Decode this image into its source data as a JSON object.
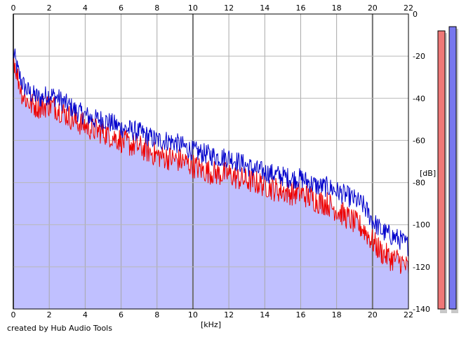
{
  "chart_data": {
    "type": "area",
    "title": "",
    "xlabel": "[kHz]",
    "ylabel": "[dB]",
    "xlim": [
      0,
      22
    ],
    "ylim": [
      -140,
      0
    ],
    "x_ticks": [
      0,
      2,
      4,
      6,
      8,
      10,
      12,
      14,
      16,
      18,
      20,
      22
    ],
    "y_ticks": [
      0,
      -20,
      -40,
      -60,
      -80,
      -100,
      -120,
      -140
    ],
    "y_tick_labels": [
      "0",
      "-20",
      "-40",
      "-60",
      "-80",
      "-100",
      "-120",
      "-140"
    ],
    "grid": true,
    "legend": "none",
    "series": [
      {
        "color": "#0000cc",
        "x": [
          0,
          0.25,
          0.5,
          0.75,
          1,
          1.5,
          2,
          2.5,
          3,
          3.5,
          4,
          4.5,
          5,
          5.5,
          6,
          6.5,
          7,
          7.5,
          8,
          8.5,
          9,
          9.5,
          10,
          10.5,
          11,
          11.5,
          12,
          12.5,
          13,
          13.5,
          14,
          14.5,
          15,
          15.5,
          16,
          16.5,
          17,
          17.5,
          18,
          18.5,
          19,
          19.5,
          20,
          20.5,
          21,
          21.5,
          22
        ],
        "y": [
          -18,
          -27,
          -33,
          -36,
          -38,
          -40,
          -38,
          -40,
          -43,
          -46,
          -48,
          -50,
          -50,
          -52,
          -54,
          -55,
          -56,
          -58,
          -60,
          -60,
          -61,
          -63,
          -65,
          -66,
          -67,
          -68,
          -68,
          -70,
          -72,
          -74,
          -75,
          -76,
          -77,
          -78,
          -78,
          -80,
          -82,
          -82,
          -84,
          -86,
          -88,
          -91,
          -98,
          -103,
          -105,
          -107,
          -110
        ]
      },
      {
        "color": "#ee0000",
        "x": [
          0,
          0.25,
          0.5,
          0.75,
          1,
          1.5,
          2,
          2.5,
          3,
          3.5,
          4,
          4.5,
          5,
          5.5,
          6,
          6.5,
          7,
          7.5,
          8,
          8.5,
          9,
          9.5,
          10,
          10.5,
          11,
          11.5,
          12,
          12.5,
          13,
          13.5,
          14,
          14.5,
          15,
          15.5,
          16,
          16.5,
          17,
          17.5,
          18,
          18.5,
          19,
          19.5,
          20,
          20.5,
          21,
          21.5,
          22
        ],
        "y": [
          -20,
          -30,
          -38,
          -41,
          -43,
          -44,
          -43,
          -45,
          -48,
          -51,
          -53,
          -55,
          -56,
          -58,
          -60,
          -62,
          -63,
          -65,
          -67,
          -68,
          -69,
          -70,
          -72,
          -74,
          -75,
          -76,
          -76,
          -78,
          -79,
          -80,
          -81,
          -83,
          -84,
          -85,
          -85,
          -87,
          -89,
          -90,
          -93,
          -96,
          -99,
          -102,
          -108,
          -113,
          -116,
          -117,
          -121
        ]
      }
    ],
    "level_meters": [
      {
        "color": "#ee7777",
        "level_db": -8
      },
      {
        "color": "#7777ee",
        "level_db": -6
      }
    ]
  },
  "footer": {
    "credit": "created by Hub Audio Tools"
  }
}
